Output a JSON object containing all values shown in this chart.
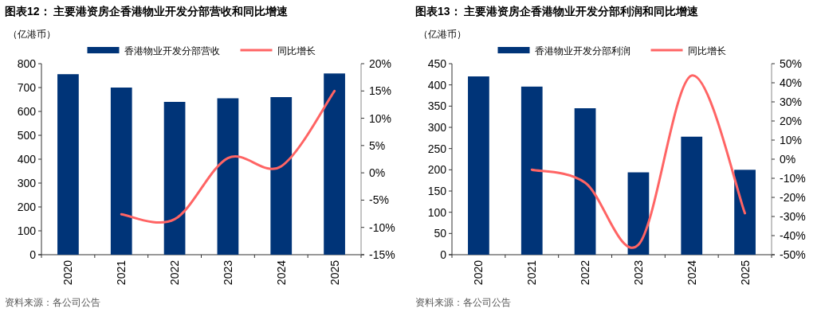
{
  "chart_data": [
    {
      "type": "bar",
      "title": "图表12：  主要港资房企香港物业开发分部营收和同比增速",
      "ylabel": "（亿港币）",
      "categories": [
        "2020",
        "2021",
        "2022",
        "2023",
        "2024",
        "2025"
      ],
      "series": [
        {
          "name": "香港物业开发分部营收",
          "color": "#003478",
          "values": [
            756,
            700,
            640,
            655,
            660,
            759
          ]
        },
        {
          "name": "同比增长",
          "type": "line",
          "axis": "y2",
          "color": "#ff6464",
          "values": [
            null,
            -7.6,
            -8.5,
            2.7,
            1.2,
            15.0
          ]
        }
      ],
      "ylim": [
        0,
        800
      ],
      "yticks": [
        0,
        100,
        200,
        300,
        400,
        500,
        600,
        700,
        800
      ],
      "y2lim": [
        -15,
        20
      ],
      "y2ticks": [
        {
          "value": -15,
          "label": "-15%"
        },
        {
          "value": -10,
          "label": "-10%"
        },
        {
          "value": -5,
          "label": "-5%"
        },
        {
          "value": 0,
          "label": "0%"
        },
        {
          "value": 5,
          "label": "5%"
        },
        {
          "value": 10,
          "label": "10%"
        },
        {
          "value": 15,
          "label": "15%"
        },
        {
          "value": 20,
          "label": "20%"
        }
      ],
      "legend": "top",
      "annotations": [
        "资料来源：各公司公告"
      ]
    },
    {
      "type": "bar",
      "title": "图表13：  主要港资房企香港物业开发分部利润和同比增速",
      "ylabel": "（亿港币）",
      "categories": [
        "2020",
        "2021",
        "2022",
        "2023",
        "2024",
        "2025"
      ],
      "series": [
        {
          "name": "香港物业开发分部利润",
          "color": "#003478",
          "values": [
            420,
            396,
            345,
            194,
            278,
            200
          ]
        },
        {
          "name": "同比增长",
          "type": "line",
          "axis": "y2",
          "color": "#ff6464",
          "values": [
            null,
            -5.5,
            -12.3,
            -44.8,
            43.8,
            -28.3
          ]
        }
      ],
      "ylim": [
        0,
        450
      ],
      "yticks": [
        0,
        50,
        100,
        150,
        200,
        250,
        300,
        350,
        400,
        450
      ],
      "y2lim": [
        -50,
        50
      ],
      "y2ticks": [
        {
          "value": -50,
          "label": "-50%"
        },
        {
          "value": -40,
          "label": "-40%"
        },
        {
          "value": -30,
          "label": "-30%"
        },
        {
          "value": -20,
          "label": "-20%"
        },
        {
          "value": -10,
          "label": "-10%"
        },
        {
          "value": 0,
          "label": "0%"
        },
        {
          "value": 10,
          "label": "10%"
        },
        {
          "value": 20,
          "label": "20%"
        },
        {
          "value": 30,
          "label": "30%"
        },
        {
          "value": 40,
          "label": "40%"
        },
        {
          "value": 50,
          "label": "50%"
        }
      ],
      "legend": "top",
      "annotations": [
        "资料来源：各公司公告"
      ]
    }
  ]
}
